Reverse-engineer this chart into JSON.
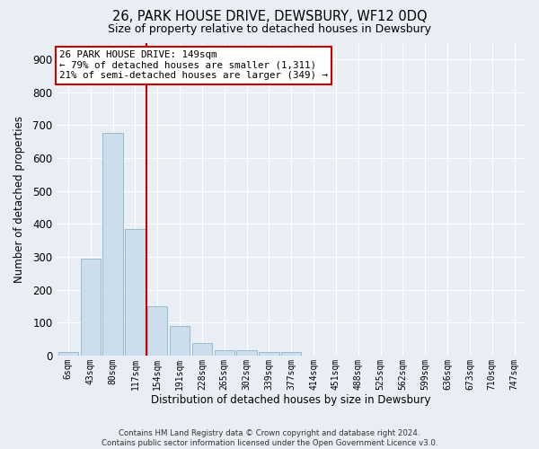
{
  "title1": "26, PARK HOUSE DRIVE, DEWSBURY, WF12 0DQ",
  "title2": "Size of property relative to detached houses in Dewsbury",
  "xlabel": "Distribution of detached houses by size in Dewsbury",
  "ylabel": "Number of detached properties",
  "bar_labels": [
    "6sqm",
    "43sqm",
    "80sqm",
    "117sqm",
    "154sqm",
    "191sqm",
    "228sqm",
    "265sqm",
    "302sqm",
    "339sqm",
    "377sqm",
    "414sqm",
    "451sqm",
    "488sqm",
    "525sqm",
    "562sqm",
    "599sqm",
    "636sqm",
    "673sqm",
    "710sqm",
    "747sqm"
  ],
  "bar_heights": [
    10,
    295,
    675,
    385,
    150,
    90,
    38,
    15,
    15,
    10,
    10,
    0,
    0,
    0,
    0,
    0,
    0,
    0,
    0,
    0,
    0
  ],
  "bar_color": "#ccdded",
  "bar_edgecolor": "#99bbcc",
  "vline_color": "#cc0000",
  "ylim": [
    0,
    950
  ],
  "yticks": [
    0,
    100,
    200,
    300,
    400,
    500,
    600,
    700,
    800,
    900
  ],
  "annotation_title": "26 PARK HOUSE DRIVE: 149sqm",
  "annotation_line1": "← 79% of detached houses are smaller (1,311)",
  "annotation_line2": "21% of semi-detached houses are larger (349) →",
  "annotation_box_color": "#ffffff",
  "annotation_box_edgecolor": "#cc0000",
  "footer1": "Contains HM Land Registry data © Crown copyright and database right 2024.",
  "footer2": "Contains public sector information licensed under the Open Government Licence v3.0.",
  "background_color": "#e8eef4",
  "grid_color": "#ffffff",
  "figsize": [
    6.0,
    5.0
  ],
  "dpi": 100
}
